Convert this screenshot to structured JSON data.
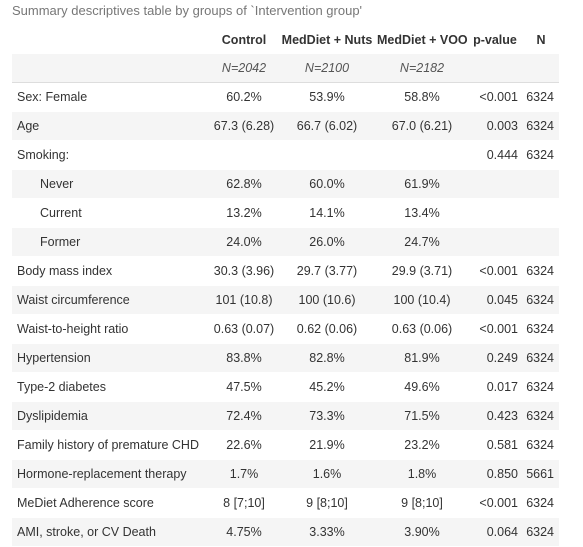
{
  "caption": "Summary descriptives table by groups of `Intervention group'",
  "columns": {
    "control": "Control",
    "nuts": "MedDiet + Nuts",
    "voo": "MedDiet + VOO",
    "pvalue": "p-value",
    "n": "N"
  },
  "group_n": {
    "control": "N=2042",
    "nuts": "N=2100",
    "voo": "N=2182"
  },
  "rows": [
    {
      "label": "Sex: Female",
      "control": "60.2%",
      "nuts": "53.9%",
      "voo": "58.8%",
      "p": "<0.001",
      "n": "6324"
    },
    {
      "label": "Age",
      "control": "67.3 (6.28)",
      "nuts": "66.7 (6.02)",
      "voo": "67.0 (6.21)",
      "p": "0.003",
      "n": "6324"
    },
    {
      "label": "Smoking:",
      "control": "",
      "nuts": "",
      "voo": "",
      "p": "0.444",
      "n": "6324"
    },
    {
      "label": "Never",
      "control": "62.8%",
      "nuts": "60.0%",
      "voo": "61.9%",
      "p": "",
      "n": ""
    },
    {
      "label": "Current",
      "control": "13.2%",
      "nuts": "14.1%",
      "voo": "13.4%",
      "p": "",
      "n": ""
    },
    {
      "label": "Former",
      "control": "24.0%",
      "nuts": "26.0%",
      "voo": "24.7%",
      "p": "",
      "n": ""
    },
    {
      "label": "Body mass index",
      "control": "30.3 (3.96)",
      "nuts": "29.7 (3.77)",
      "voo": "29.9 (3.71)",
      "p": "<0.001",
      "n": "6324"
    },
    {
      "label": "Waist circumference",
      "control": "101 (10.8)",
      "nuts": "100 (10.6)",
      "voo": "100 (10.4)",
      "p": "0.045",
      "n": "6324"
    },
    {
      "label": "Waist-to-height ratio",
      "control": "0.63 (0.07)",
      "nuts": "0.62 (0.06)",
      "voo": "0.63 (0.06)",
      "p": "<0.001",
      "n": "6324"
    },
    {
      "label": "Hypertension",
      "control": "83.8%",
      "nuts": "82.8%",
      "voo": "81.9%",
      "p": "0.249",
      "n": "6324"
    },
    {
      "label": "Type-2 diabetes",
      "control": "47.5%",
      "nuts": "45.2%",
      "voo": "49.6%",
      "p": "0.017",
      "n": "6324"
    },
    {
      "label": "Dyslipidemia",
      "control": "72.4%",
      "nuts": "73.3%",
      "voo": "71.5%",
      "p": "0.423",
      "n": "6324"
    },
    {
      "label": "Family history of premature CHD",
      "control": "22.6%",
      "nuts": "21.9%",
      "voo": "23.2%",
      "p": "0.581",
      "n": "6324"
    },
    {
      "label": "Hormone-replacement therapy",
      "control": "1.7%",
      "nuts": "1.6%",
      "voo": "1.8%",
      "p": "0.850",
      "n": "5661"
    },
    {
      "label": "MeDiet Adherence score",
      "control": "8 [7;10]",
      "nuts": "9 [8;10]",
      "voo": "9 [8;10]",
      "p": "<0.001",
      "n": "6324"
    },
    {
      "label": "AMI, stroke, or CV Death",
      "control": "4.75%",
      "nuts": "3.33%",
      "voo": "3.90%",
      "p": "0.064",
      "n": "6324"
    }
  ]
}
